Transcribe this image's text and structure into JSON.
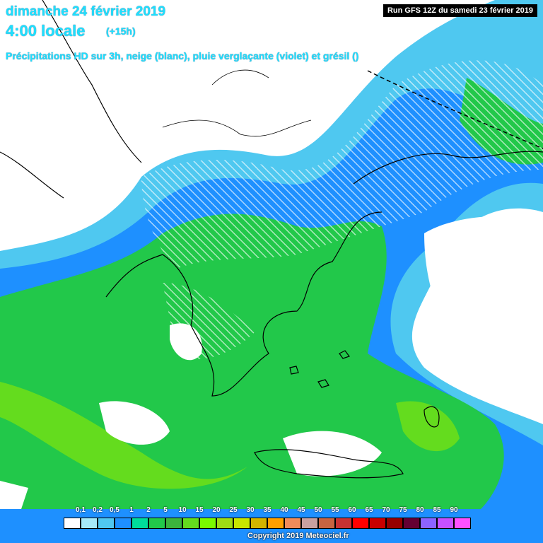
{
  "header": {
    "date": "dimanche 24 février 2019",
    "hour": "4:00 locale",
    "step": "(+15h)",
    "description": "Précipitations HD sur 3h, neige (blanc), pluie verglaçante (violet) et grésil ()",
    "run": "Run GFS 12Z du samedi 23 février 2019"
  },
  "legend": {
    "labels": [
      "0,1",
      "0,2",
      "0,5",
      "1",
      "2",
      "5",
      "10",
      "15",
      "20",
      "25",
      "30",
      "35",
      "40",
      "45",
      "50",
      "55",
      "60",
      "65",
      "70",
      "75",
      "80",
      "85",
      "90"
    ],
    "colors": [
      "#ffffff",
      "#a6eaf8",
      "#50c8f0",
      "#1e90ff",
      "#00dc9a",
      "#22c84a",
      "#3cb43c",
      "#64dc1e",
      "#7afa00",
      "#a0dc14",
      "#c8e600",
      "#d2b400",
      "#ffa000",
      "#f08c5a",
      "#c8a0a0",
      "#c86440",
      "#c83232",
      "#ff0000",
      "#c80000",
      "#960000",
      "#640032",
      "#8c64ff",
      "#c850ff",
      "#ff50ff"
    ]
  },
  "footer": {
    "copyright": "Copyright 2019 Meteociel.fr"
  }
}
